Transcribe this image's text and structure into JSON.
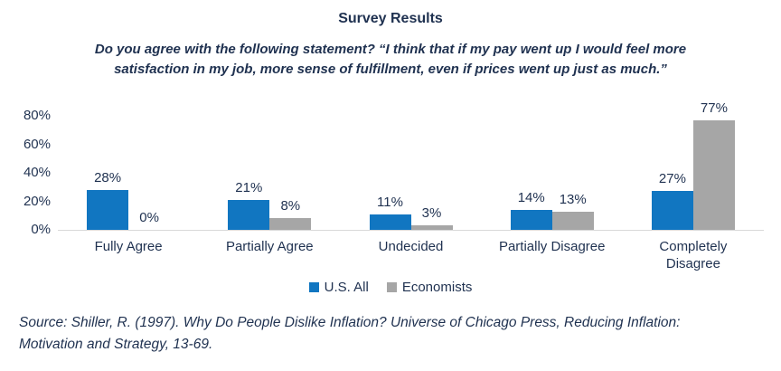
{
  "chart_data": {
    "type": "bar",
    "title": "Survey Results",
    "subtitle": "Do you agree with the following statement? “I think that if my pay went up I would feel more\nsatisfaction in my job, more sense of fulfillment, even if prices went up just as much.”",
    "categories": [
      "Fully Agree",
      "Partially Agree",
      "Undecided",
      "Partially Disagree",
      "Completely\nDisagree"
    ],
    "series": [
      {
        "name": "U.S. All",
        "color": "#1176c1",
        "values": [
          28,
          21,
          11,
          14,
          27
        ]
      },
      {
        "name": "Economists",
        "color": "#a6a6a6",
        "values": [
          0,
          8,
          3,
          13,
          77
        ]
      }
    ],
    "value_suffix": "%",
    "ylim": [
      0,
      80
    ],
    "yticks": [
      "0%",
      "20%",
      "40%",
      "60%",
      "80%"
    ],
    "grid": false,
    "legend_position": "bottom",
    "data_labels": true
  },
  "source_note": "Source: Shiller, R. (1997). Why Do People Dislike Inflation? Universe of Chicago Press, Reducing Inflation:\nMotivation and Strategy, 13-69.",
  "colors": {
    "text": "#1f3150",
    "axis_line": "#d9d9d9",
    "series_us_all": "#1176c1",
    "series_economists": "#a6a6a6",
    "background": "#ffffff"
  }
}
